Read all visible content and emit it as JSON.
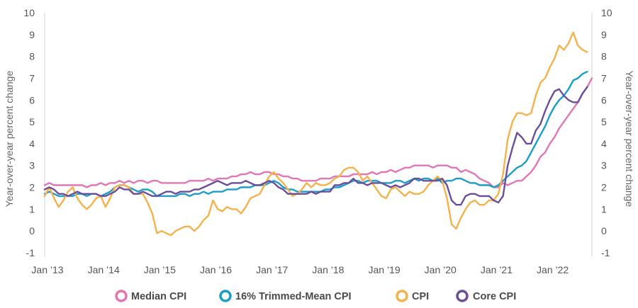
{
  "chart_data": {
    "type": "line",
    "ylabel_left": "Year-over-year percent change",
    "ylabel_right": "Year-over-year percent change",
    "ylim": [
      -1,
      10
    ],
    "yticks": [
      -1,
      0,
      1,
      2,
      3,
      4,
      5,
      6,
      7,
      8,
      9,
      10
    ],
    "x_start": "Jan '13",
    "x_end": "Oct '22",
    "xticks": [
      {
        "label": "Jan ’13",
        "month_index": 0
      },
      {
        "label": "Jan ’14",
        "month_index": 12
      },
      {
        "label": "Jan ’15",
        "month_index": 24
      },
      {
        "label": "Jan ’16",
        "month_index": 36
      },
      {
        "label": "Jan ’17",
        "month_index": 48
      },
      {
        "label": "Jan ’18",
        "month_index": 60
      },
      {
        "label": "Jan ’19",
        "month_index": 72
      },
      {
        "label": "Jan ’20",
        "month_index": 84
      },
      {
        "label": "Jan ’21",
        "month_index": 96
      },
      {
        "label": "Jan ’22",
        "month_index": 108
      }
    ],
    "grid": "vertical-axis-lines-only",
    "legend_position": "bottom-center",
    "series": [
      {
        "name": "Median CPI",
        "color": "#E276B5",
        "values": [
          2.1,
          2.2,
          2.1,
          2.1,
          2.1,
          2.1,
          2.1,
          2.1,
          2.1,
          2.0,
          2.1,
          2.1,
          2.2,
          2.1,
          2.2,
          2.2,
          2.3,
          2.2,
          2.3,
          2.2,
          2.3,
          2.3,
          2.2,
          2.3,
          2.3,
          2.2,
          2.2,
          2.2,
          2.2,
          2.2,
          2.2,
          2.3,
          2.3,
          2.3,
          2.3,
          2.4,
          2.3,
          2.4,
          2.4,
          2.4,
          2.5,
          2.5,
          2.6,
          2.6,
          2.7,
          2.6,
          2.6,
          2.7,
          2.7,
          2.6,
          2.6,
          2.5,
          2.5,
          2.4,
          2.4,
          2.3,
          2.3,
          2.3,
          2.3,
          2.4,
          2.4,
          2.4,
          2.5,
          2.5,
          2.5,
          2.5,
          2.6,
          2.6,
          2.6,
          2.6,
          2.7,
          2.6,
          2.7,
          2.7,
          2.8,
          2.7,
          2.8,
          2.9,
          2.9,
          3.0,
          3.0,
          3.0,
          3.0,
          2.9,
          3.0,
          3.0,
          3.0,
          2.9,
          2.9,
          2.7,
          2.8,
          2.7,
          2.6,
          2.4,
          2.3,
          2.2,
          2.0,
          2.0,
          2.2,
          2.1,
          2.2,
          2.3,
          2.3,
          2.5,
          2.7,
          3.0,
          3.4,
          3.6,
          4.0,
          4.3,
          4.7,
          5.0,
          5.3,
          5.6,
          5.9,
          6.3,
          6.6,
          7.0
        ]
      },
      {
        "name": "16% Trimmed-Mean CPI",
        "color": "#1A9DC9",
        "values": [
          1.7,
          1.8,
          1.7,
          1.6,
          1.6,
          1.6,
          1.6,
          1.7,
          1.7,
          1.6,
          1.7,
          1.7,
          1.6,
          1.7,
          1.8,
          2.0,
          2.1,
          2.1,
          2.0,
          1.9,
          1.8,
          1.9,
          1.9,
          1.8,
          1.6,
          1.6,
          1.6,
          1.6,
          1.6,
          1.7,
          1.7,
          1.6,
          1.7,
          1.7,
          1.8,
          1.7,
          1.8,
          1.8,
          1.8,
          1.9,
          1.9,
          1.9,
          2.0,
          2.0,
          2.0,
          2.1,
          2.1,
          2.1,
          2.2,
          2.3,
          2.2,
          2.0,
          1.9,
          1.9,
          1.8,
          1.8,
          1.8,
          1.8,
          1.8,
          1.8,
          1.9,
          1.9,
          2.0,
          2.0,
          2.1,
          2.2,
          2.3,
          2.3,
          2.2,
          2.3,
          2.3,
          2.3,
          2.2,
          2.2,
          2.2,
          2.3,
          2.3,
          2.2,
          2.3,
          2.4,
          2.3,
          2.4,
          2.4,
          2.3,
          2.4,
          2.2,
          2.3,
          2.3,
          2.4,
          2.4,
          2.3,
          2.2,
          2.2,
          2.1,
          2.1,
          2.1,
          2.0,
          2.1,
          2.3,
          2.5,
          2.7,
          2.9,
          3.0,
          3.2,
          3.6,
          4.0,
          4.4,
          4.8,
          5.3,
          5.7,
          6.0,
          6.2,
          6.5,
          6.9,
          7.0,
          7.2,
          7.3
        ]
      },
      {
        "name": "CPI",
        "color": "#F5B24B",
        "values": [
          1.6,
          2.0,
          1.5,
          1.1,
          1.4,
          1.8,
          2.0,
          1.5,
          1.2,
          1.0,
          1.2,
          1.5,
          1.6,
          1.1,
          1.5,
          2.0,
          2.1,
          2.1,
          2.0,
          1.7,
          1.7,
          1.7,
          1.3,
          0.8,
          -0.1,
          0.0,
          -0.1,
          -0.2,
          0.0,
          0.1,
          0.2,
          0.2,
          0.0,
          0.2,
          0.5,
          0.7,
          1.4,
          1.0,
          0.9,
          1.1,
          1.0,
          1.0,
          0.8,
          1.1,
          1.5,
          1.6,
          1.7,
          2.1,
          2.5,
          2.7,
          2.4,
          2.2,
          1.9,
          1.6,
          1.7,
          1.9,
          2.2,
          2.0,
          2.2,
          2.1,
          2.1,
          2.2,
          2.4,
          2.5,
          2.8,
          2.9,
          2.9,
          2.7,
          2.3,
          2.5,
          2.2,
          1.9,
          1.6,
          1.5,
          1.9,
          2.0,
          1.8,
          1.6,
          1.8,
          1.7,
          1.7,
          1.8,
          2.1,
          2.3,
          2.5,
          2.3,
          1.5,
          0.3,
          0.1,
          0.6,
          1.0,
          1.3,
          1.4,
          1.2,
          1.2,
          1.4,
          1.4,
          1.7,
          2.6,
          4.2,
          5.0,
          5.4,
          5.4,
          5.3,
          5.4,
          6.2,
          6.8,
          7.0,
          7.5,
          7.9,
          8.5,
          8.3,
          8.6,
          9.1,
          8.5,
          8.3,
          8.2
        ]
      },
      {
        "name": "Core CPI",
        "color": "#6B4E9B",
        "values": [
          1.9,
          2.0,
          1.9,
          1.7,
          1.7,
          1.6,
          1.7,
          1.8,
          1.7,
          1.7,
          1.7,
          1.7,
          1.6,
          1.6,
          1.7,
          1.8,
          2.0,
          1.9,
          1.9,
          1.7,
          1.7,
          1.8,
          1.7,
          1.6,
          1.6,
          1.7,
          1.8,
          1.8,
          1.7,
          1.8,
          1.8,
          1.8,
          1.9,
          1.9,
          2.0,
          2.1,
          2.2,
          2.3,
          2.2,
          2.1,
          2.2,
          2.2,
          2.2,
          2.3,
          2.2,
          2.1,
          2.1,
          2.2,
          2.3,
          2.2,
          2.0,
          1.9,
          1.7,
          1.7,
          1.7,
          1.7,
          1.7,
          1.8,
          1.7,
          1.8,
          1.8,
          1.8,
          2.1,
          2.1,
          2.2,
          2.2,
          2.4,
          2.2,
          2.2,
          2.1,
          2.2,
          2.2,
          2.2,
          2.1,
          2.0,
          2.1,
          2.0,
          2.1,
          2.2,
          2.4,
          2.4,
          2.3,
          2.3,
          2.3,
          2.3,
          2.4,
          2.1,
          1.4,
          1.2,
          1.2,
          1.6,
          1.7,
          1.7,
          1.6,
          1.6,
          1.6,
          1.4,
          1.3,
          1.6,
          3.0,
          3.8,
          4.5,
          4.3,
          4.0,
          4.0,
          4.6,
          4.9,
          5.5,
          6.0,
          6.4,
          6.5,
          6.2,
          6.0,
          5.9,
          5.9,
          6.3,
          6.6
        ]
      }
    ]
  }
}
